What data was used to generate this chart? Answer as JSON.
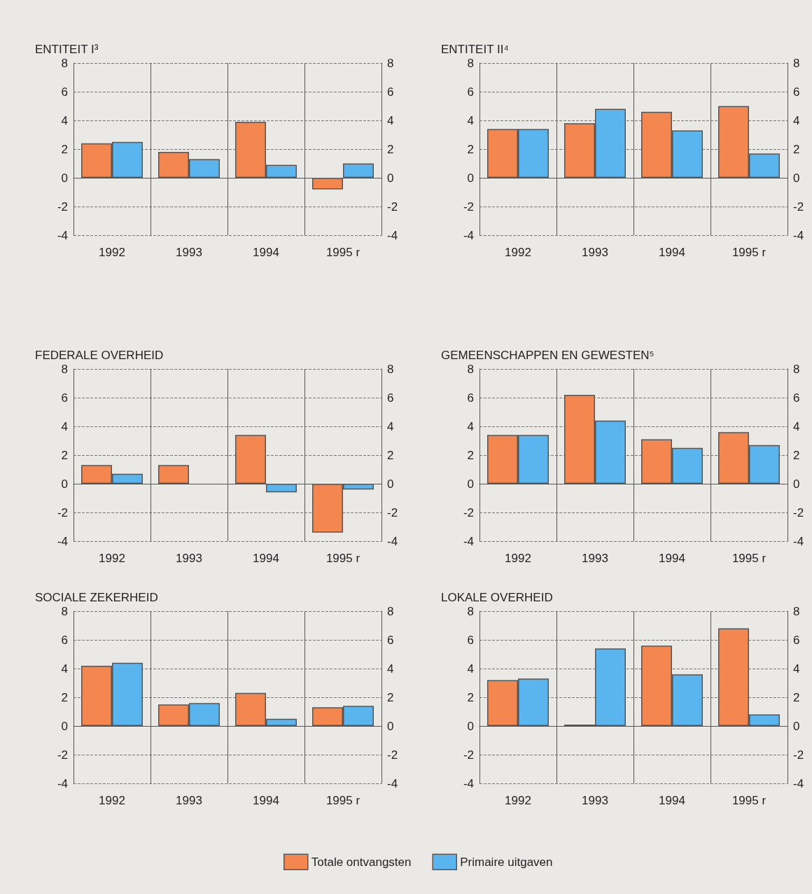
{
  "chart_data": [
    {
      "type": "bar",
      "title": "ENTITEIT I³",
      "categories": [
        "1992",
        "1993",
        "1994",
        "1995 r"
      ],
      "ylim": [
        -4,
        8
      ],
      "yticks": [
        -4,
        -2,
        0,
        2,
        4,
        6,
        8
      ],
      "y2lim": [
        -4,
        8
      ],
      "y2ticks": [
        -4,
        -2,
        0,
        2,
        4,
        6,
        8
      ],
      "grid": true,
      "series": [
        {
          "color": "#f4874f",
          "values": [
            2.4,
            1.8,
            3.9,
            -0.8
          ]
        },
        {
          "color": "#5ab4ee",
          "values": [
            2.5,
            1.3,
            0.9,
            1.0
          ]
        }
      ]
    },
    {
      "type": "bar",
      "title": "ENTITEIT II⁴",
      "categories": [
        "1992",
        "1993",
        "1994",
        "1995 r"
      ],
      "ylim": [
        -4,
        8
      ],
      "yticks": [
        -4,
        -2,
        0,
        2,
        4,
        6,
        8
      ],
      "y2lim": [
        -4,
        8
      ],
      "y2ticks": [
        -4,
        -2,
        0,
        2,
        4,
        6,
        8
      ],
      "grid": true,
      "series": [
        {
          "color": "#f4874f",
          "values": [
            3.4,
            3.8,
            4.6,
            5.0
          ]
        },
        {
          "color": "#5ab4ee",
          "values": [
            3.4,
            4.8,
            3.3,
            1.7
          ]
        }
      ]
    },
    {
      "type": "bar",
      "title": "FEDERALE OVERHEID",
      "categories": [
        "1992",
        "1993",
        "1994",
        "1995 r"
      ],
      "ylim": [
        -4,
        8
      ],
      "yticks": [
        -4,
        -2,
        0,
        2,
        4,
        6,
        8
      ],
      "y2lim": [
        -4,
        8
      ],
      "y2ticks": [
        -4,
        -2,
        0,
        2,
        4,
        6,
        8
      ],
      "grid": true,
      "series": [
        {
          "color": "#f4874f",
          "values": [
            1.3,
            1.3,
            3.4,
            -3.4
          ]
        },
        {
          "color": "#5ab4ee",
          "values": [
            0.7,
            null,
            -0.6,
            -0.4
          ]
        }
      ]
    },
    {
      "type": "bar",
      "title": "GEMEENSCHAPPEN EN GEWESTEN⁵",
      "categories": [
        "1992",
        "1993",
        "1994",
        "1995 r"
      ],
      "ylim": [
        -4,
        8
      ],
      "yticks": [
        -4,
        -2,
        0,
        2,
        4,
        6,
        8
      ],
      "y2lim": [
        -4,
        8
      ],
      "y2ticks": [
        -4,
        -2,
        0,
        2,
        4,
        6,
        8
      ],
      "grid": true,
      "series": [
        {
          "color": "#f4874f",
          "values": [
            3.4,
            6.2,
            3.1,
            3.6
          ]
        },
        {
          "color": "#5ab4ee",
          "values": [
            3.4,
            4.4,
            2.5,
            2.7
          ]
        }
      ]
    },
    {
      "type": "bar",
      "title": "SOCIALE ZEKERHEID",
      "categories": [
        "1992",
        "1993",
        "1994",
        "1995 r"
      ],
      "ylim": [
        -4,
        8
      ],
      "yticks": [
        -4,
        -2,
        0,
        2,
        4,
        6,
        8
      ],
      "y2lim": [
        -4,
        8
      ],
      "y2ticks": [
        -4,
        -2,
        0,
        2,
        4,
        6,
        8
      ],
      "grid": true,
      "series": [
        {
          "color": "#f4874f",
          "values": [
            4.2,
            1.5,
            2.3,
            1.3
          ]
        },
        {
          "color": "#5ab4ee",
          "values": [
            4.4,
            1.6,
            0.5,
            1.4
          ]
        }
      ]
    },
    {
      "type": "bar",
      "title": "LOKALE OVERHEID",
      "categories": [
        "1992",
        "1993",
        "1994",
        "1995 r"
      ],
      "ylim": [
        -4,
        8
      ],
      "yticks": [
        -4,
        -2,
        0,
        2,
        4,
        6,
        8
      ],
      "y2lim": [
        -4,
        8
      ],
      "y2ticks": [
        -4,
        -2,
        0,
        2,
        4,
        6,
        8
      ],
      "grid": true,
      "legend": "bottom",
      "series": [
        {
          "name": "Totale ontvangsten",
          "color": "#f4874f",
          "values": [
            3.2,
            0.1,
            5.6,
            6.8
          ]
        },
        {
          "name": "Primaire uitgaven",
          "color": "#5ab4ee",
          "values": [
            3.3,
            5.4,
            3.6,
            0.8
          ]
        }
      ]
    }
  ]
}
